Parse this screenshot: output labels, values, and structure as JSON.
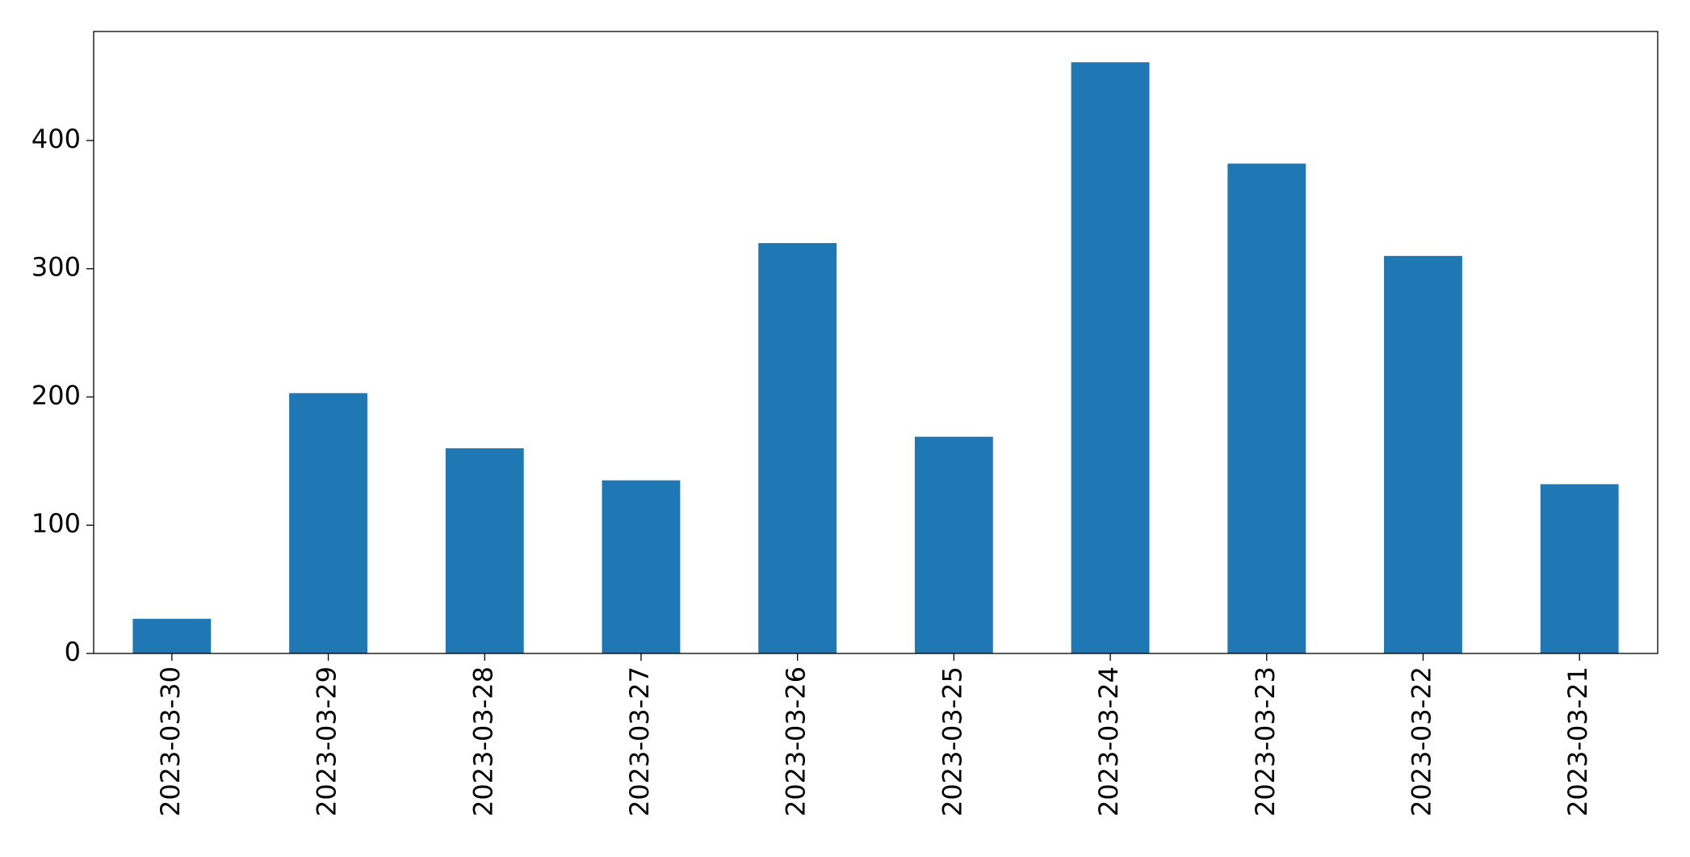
{
  "chart_data": {
    "type": "bar",
    "categories": [
      "2023-03-30",
      "2023-03-29",
      "2023-03-28",
      "2023-03-27",
      "2023-03-26",
      "2023-03-25",
      "2023-03-24",
      "2023-03-23",
      "2023-03-22",
      "2023-03-21"
    ],
    "values": [
      27,
      203,
      160,
      135,
      320,
      169,
      461,
      382,
      310,
      132
    ],
    "color": "#1f77b4",
    "ylim": [
      0,
      485
    ],
    "yticks": [
      0,
      100,
      200,
      300,
      400
    ],
    "grid": false
  }
}
